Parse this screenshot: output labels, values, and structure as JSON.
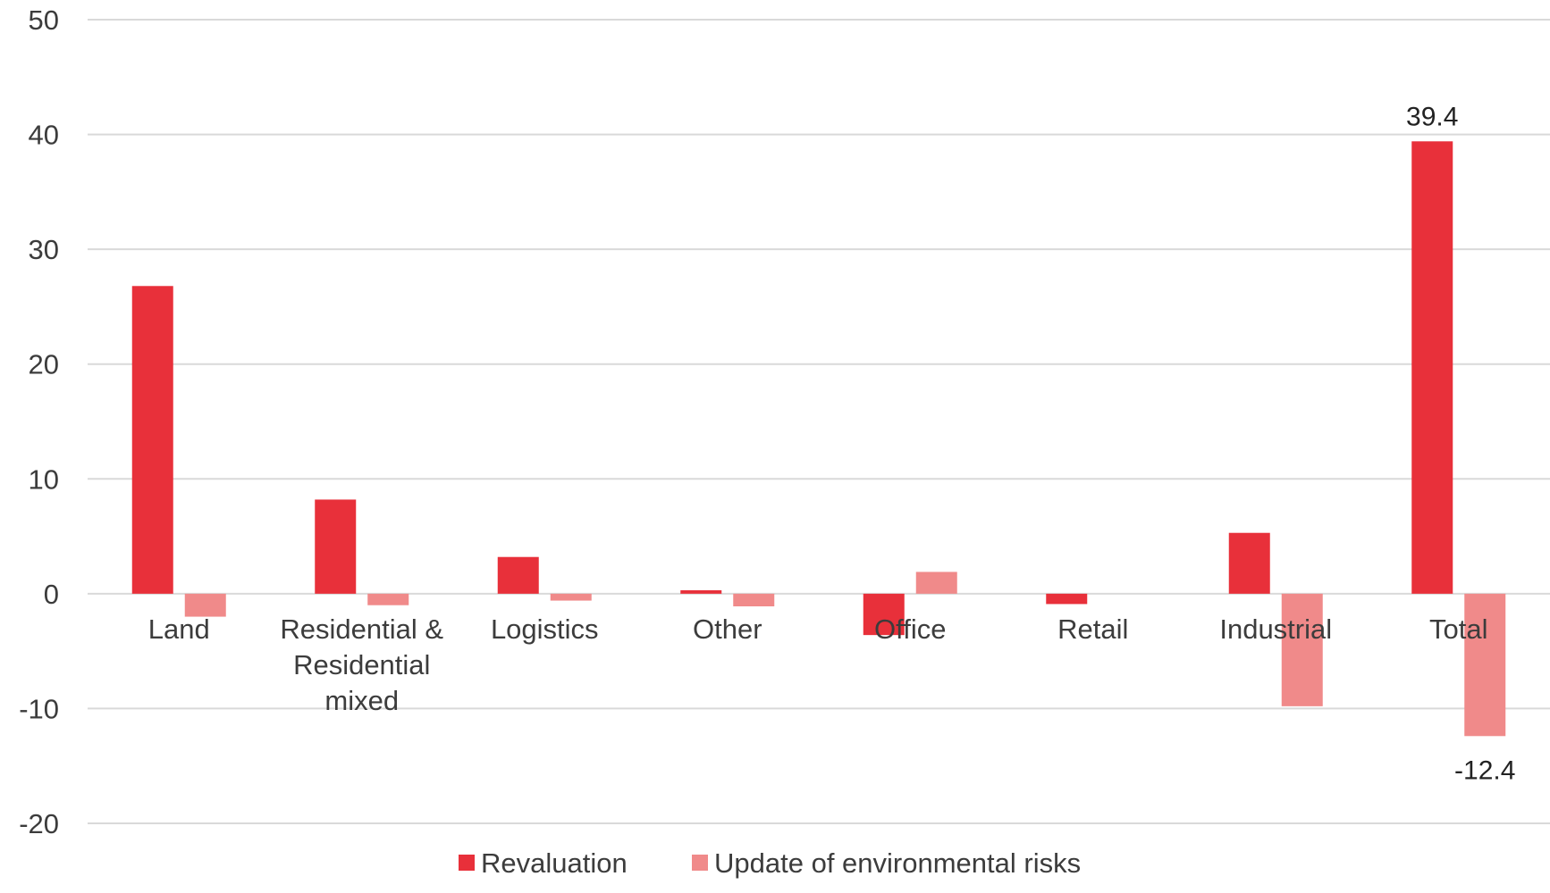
{
  "chart_data": {
    "type": "bar",
    "title": "",
    "xlabel": "",
    "ylabel": "",
    "ylim": [
      -20,
      50
    ],
    "yticks": [
      50,
      40,
      30,
      20,
      10,
      0,
      -10,
      -20
    ],
    "ytick_labels": [
      "50",
      "40",
      "30",
      "20",
      "10",
      "0",
      "-10",
      "-20"
    ],
    "grid": true,
    "legend_position": "bottom",
    "categories": [
      [
        "Land"
      ],
      [
        "Residential &",
        "Residential",
        "mixed"
      ],
      [
        "Logistics"
      ],
      [
        "Other"
      ],
      [
        "Office"
      ],
      [
        "Retail"
      ],
      [
        "Industrial"
      ],
      [
        "Total"
      ]
    ],
    "series": [
      {
        "name": "Revaluation",
        "color": "#e8303a",
        "values": [
          26.8,
          8.2,
          3.2,
          0.3,
          -3.6,
          -0.9,
          5.3,
          39.4
        ]
      },
      {
        "name": "Update of environmental risks",
        "color": "#f08a8a",
        "values": [
          -2.0,
          -1.0,
          -0.6,
          -1.1,
          1.9,
          0.0,
          -9.8,
          -12.4
        ]
      }
    ],
    "data_labels": [
      {
        "series": 0,
        "category": 7,
        "text": "39.4"
      },
      {
        "series": 1,
        "category": 7,
        "text": "-12.4"
      }
    ]
  }
}
